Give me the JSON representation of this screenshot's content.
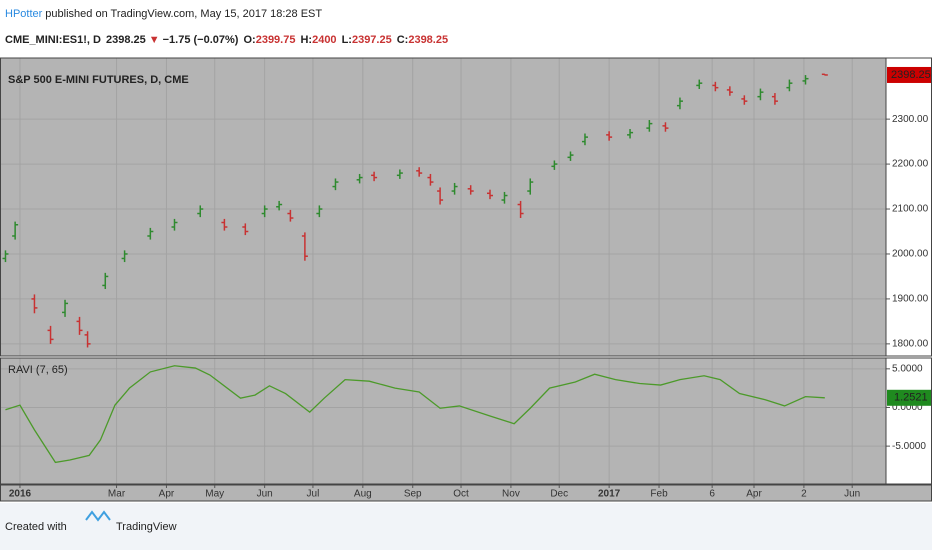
{
  "header": {
    "publisher": "HPotter",
    "published_text": "published on TradingView.com, May 15, 2017 18:28 EST",
    "symbol": "CME_MINI:ES1!, D",
    "change_arrow": "▼",
    "change": "−1.75 (−0.07%)",
    "ohlc_labels": [
      "O:",
      "H:",
      "L:",
      "C:"
    ]
  },
  "footer": {
    "created": "Created with",
    "brand": "TradingView"
  },
  "chart_data": [
    {
      "type": "ohlc",
      "title": "S&P 500 E-MINI FUTURES, D, CME",
      "background": "#b4b4b4",
      "grid": true,
      "up_color": "#2f8a2f",
      "down_color": "#c83232",
      "last_color": "#cc0000",
      "x": [
        -9,
        -3,
        9,
        19,
        28,
        37,
        42,
        53,
        65,
        81,
        96,
        112,
        127,
        140,
        152,
        161,
        168,
        177,
        186,
        196,
        211,
        220,
        236,
        248,
        255,
        261,
        270,
        280,
        292,
        301,
        311,
        317,
        332,
        342,
        351,
        366,
        379,
        391,
        401,
        410,
        422,
        432,
        441,
        450,
        460,
        469,
        478,
        488,
        500
      ],
      "open": [
        1990,
        2040,
        1900,
        1830,
        1870,
        1850,
        1820,
        1930,
        1990,
        2040,
        2060,
        2090,
        2070,
        2060,
        2090,
        2105,
        2090,
        2040,
        2090,
        2150,
        2165,
        2175,
        2175,
        2185,
        2170,
        2140,
        2140,
        2145,
        2135,
        2120,
        2110,
        2140,
        2195,
        2215,
        2250,
        2265,
        2265,
        2280,
        2285,
        2330,
        2375,
        2375,
        2365,
        2345,
        2350,
        2350,
        2370,
        2385,
        2399.75
      ],
      "high": [
        2008,
        2072,
        1910,
        1840,
        1898,
        1860,
        1828,
        1958,
        2008,
        2058,
        2078,
        2108,
        2078,
        2068,
        2108,
        2118,
        2098,
        2048,
        2108,
        2168,
        2178,
        2183,
        2188,
        2193,
        2178,
        2148,
        2158,
        2153,
        2143,
        2138,
        2118,
        2168,
        2208,
        2228,
        2268,
        2273,
        2278,
        2298,
        2293,
        2348,
        2388,
        2383,
        2373,
        2353,
        2368,
        2358,
        2388,
        2398,
        2400
      ],
      "low": [
        1982,
        2032,
        1868,
        1800,
        1860,
        1820,
        1792,
        1922,
        1982,
        2032,
        2052,
        2082,
        2052,
        2042,
        2082,
        2097,
        2072,
        1985,
        2082,
        2142,
        2157,
        2162,
        2167,
        2172,
        2152,
        2110,
        2132,
        2132,
        2122,
        2112,
        2080,
        2132,
        2187,
        2207,
        2242,
        2252,
        2257,
        2272,
        2272,
        2322,
        2367,
        2362,
        2352,
        2332,
        2342,
        2332,
        2362,
        2377,
        2397.25
      ],
      "close": [
        2000,
        2065,
        1880,
        1810,
        1890,
        1830,
        1800,
        1950,
        2000,
        2050,
        2070,
        2100,
        2060,
        2050,
        2100,
        2110,
        2080,
        1995,
        2100,
        2160,
        2170,
        2170,
        2180,
        2180,
        2160,
        2120,
        2150,
        2140,
        2130,
        2130,
        2090,
        2160,
        2200,
        2220,
        2260,
        2260,
        2270,
        2290,
        2280,
        2340,
        2380,
        2370,
        2360,
        2340,
        2360,
        2340,
        2380,
        2390,
        2398.25
      ],
      "xlim": [
        -12.4,
        538
      ],
      "ylim": [
        1773,
        2436
      ],
      "yticks": [
        {
          "value": 1800,
          "label": "1800.00"
        },
        {
          "value": 1900,
          "label": "1900.00"
        },
        {
          "value": 2000,
          "label": "2000.00"
        },
        {
          "value": 2100,
          "label": "2100.00"
        },
        {
          "value": 2200,
          "label": "2200.00"
        },
        {
          "value": 2300,
          "label": "2300.00"
        }
      ]
    },
    {
      "type": "line",
      "title": "RAVI (7, 65)",
      "background": "#b4b4b4",
      "grid": true,
      "color": "#4c9a2a",
      "last_color": "#1f8a1f",
      "x": [
        -9,
        0,
        9,
        22,
        31,
        43,
        50,
        59,
        68,
        81,
        96,
        109,
        118,
        137,
        146,
        155,
        165,
        180,
        189,
        202,
        217,
        233,
        248,
        261,
        273,
        292,
        307,
        317,
        329,
        345,
        357,
        370,
        385,
        398,
        410,
        425,
        435,
        447,
        463,
        475,
        488,
        500
      ],
      "values": [
        -0.3,
        0.3,
        -2.9,
        -7.1,
        -6.8,
        -6.2,
        -4.2,
        0.3,
        2.5,
        4.6,
        5.4,
        5.1,
        4.2,
        1.2,
        1.6,
        2.8,
        1.8,
        -0.6,
        1.2,
        3.6,
        3.4,
        2.5,
        2.0,
        -0.1,
        0.2,
        -1.1,
        -2.1,
        -0.1,
        2.5,
        3.3,
        4.3,
        3.6,
        3.1,
        2.9,
        3.6,
        4.1,
        3.6,
        1.8,
        1.0,
        0.2,
        1.4,
        1.2521
      ],
      "xlim": [
        -12.4,
        538
      ],
      "ylim": [
        -9.9,
        6.4
      ],
      "yticks": [
        {
          "value": -5,
          "label": "-5.0000"
        },
        {
          "value": 0,
          "label": "0.0000"
        },
        {
          "value": 5,
          "label": "5.0000"
        }
      ],
      "xticks": [
        {
          "value": 0,
          "label": "2016"
        },
        {
          "value": 60,
          "label": "Mar"
        },
        {
          "value": 91,
          "label": "Apr"
        },
        {
          "value": 121,
          "label": "May"
        },
        {
          "value": 152,
          "label": "Jun"
        },
        {
          "value": 182,
          "label": "Jul"
        },
        {
          "value": 213,
          "label": "Aug"
        },
        {
          "value": 244,
          "label": "Sep"
        },
        {
          "value": 274,
          "label": "Oct"
        },
        {
          "value": 305,
          "label": "Nov"
        },
        {
          "value": 335,
          "label": "Dec"
        },
        {
          "value": 366,
          "label": "2017"
        },
        {
          "value": 397,
          "label": "Feb"
        },
        {
          "value": 430,
          "label": "6"
        },
        {
          "value": 456,
          "label": "Apr"
        },
        {
          "value": 487,
          "label": "2"
        },
        {
          "value": 517,
          "label": "Jun"
        }
      ]
    }
  ]
}
